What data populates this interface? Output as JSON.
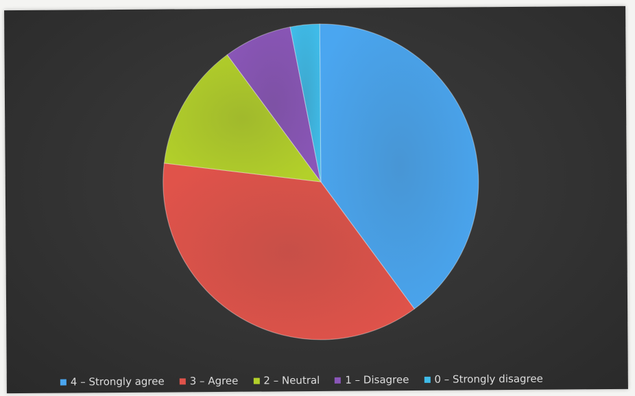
{
  "chart_data": {
    "type": "pie",
    "title": "",
    "slices": [
      {
        "label": "4 – Strongly agree",
        "value": 40,
        "color": "#4aa6f0"
      },
      {
        "label": "3 – Agree",
        "value": 37,
        "color": "#e0534a"
      },
      {
        "label": "2 – Neutral",
        "value": 13,
        "color": "#b3d02a"
      },
      {
        "label": "1 – Disagree",
        "value": 7,
        "color": "#8a56b8"
      },
      {
        "label": "0 – Strongly disagree",
        "value": 3,
        "color": "#3fbbe8"
      }
    ],
    "legend_position": "bottom"
  }
}
